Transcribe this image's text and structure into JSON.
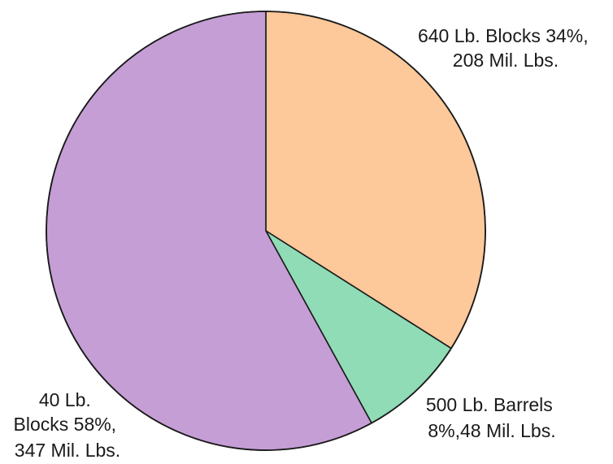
{
  "chart_data": {
    "type": "pie",
    "start_angle_deg": 0,
    "direction": "clockwise",
    "slices": [
      {
        "name": "640 Lb. Blocks",
        "percent": 34,
        "value": 208,
        "unit": "Mil. Lbs.",
        "color": "#fdc89a",
        "label_lines": [
          "640 Lb. Blocks 34%,",
          "208 Mil. Lbs."
        ]
      },
      {
        "name": "500 Lb. Barrels",
        "percent": 8,
        "value": 48,
        "unit": "Mil. Lbs.",
        "color": "#8fdcb6",
        "label_lines": [
          "500 Lb. Barrels",
          "8%,48 Mil. Lbs."
        ]
      },
      {
        "name": "40 Lb. Blocks",
        "percent": 58,
        "value": 347,
        "unit": "Mil. Lbs.",
        "color": "#c59ed6",
        "label_lines": [
          "40 Lb.",
          "Blocks 58%,",
          "347 Mil. Lbs."
        ]
      }
    ]
  }
}
